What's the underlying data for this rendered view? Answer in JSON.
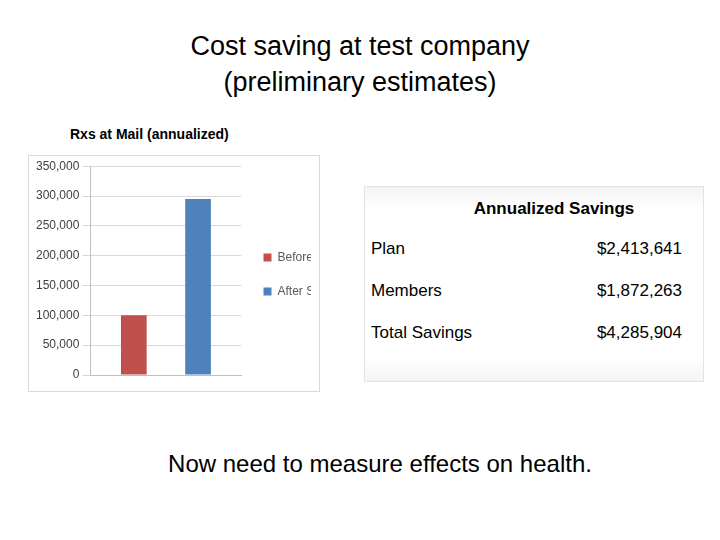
{
  "slide": {
    "title_lines": [
      "Cost saving at test company",
      "(preliminary estimates)"
    ],
    "table": {
      "title": "Annualized Savings",
      "rows": [
        [
          "Plan",
          "$2,413,641"
        ],
        [
          "Members",
          "$1,872,263"
        ],
        [
          "Total Savings",
          "$4,285,904"
        ]
      ]
    },
    "footer": "Now need to measure effects on health."
  },
  "chart_data": {
    "type": "bar",
    "title": "Rxs at Mail (annualized)",
    "categories": [
      null
    ],
    "series": [
      {
        "name": "Before SHD",
        "color": "#c0504d",
        "values": [
          100000
        ]
      },
      {
        "name": "After SHD",
        "color": "#4f81bd",
        "values": [
          295000
        ]
      }
    ],
    "ylim": [
      0,
      350000
    ],
    "yticks": [
      0,
      {
        "value": 50000,
        "label": "50,000"
      },
      {
        "value": 100000,
        "label": "100,000"
      },
      {
        "value": 150000,
        "label": "150,000"
      },
      {
        "value": 200000,
        "label": "200,000"
      },
      {
        "value": 250000,
        "label": "250,000"
      },
      {
        "value": 300000,
        "label": "300,000"
      },
      {
        "value": 350000,
        "label": "350,000"
      }
    ],
    "grid": true,
    "legend": "right",
    "tick_labels": "y"
  }
}
